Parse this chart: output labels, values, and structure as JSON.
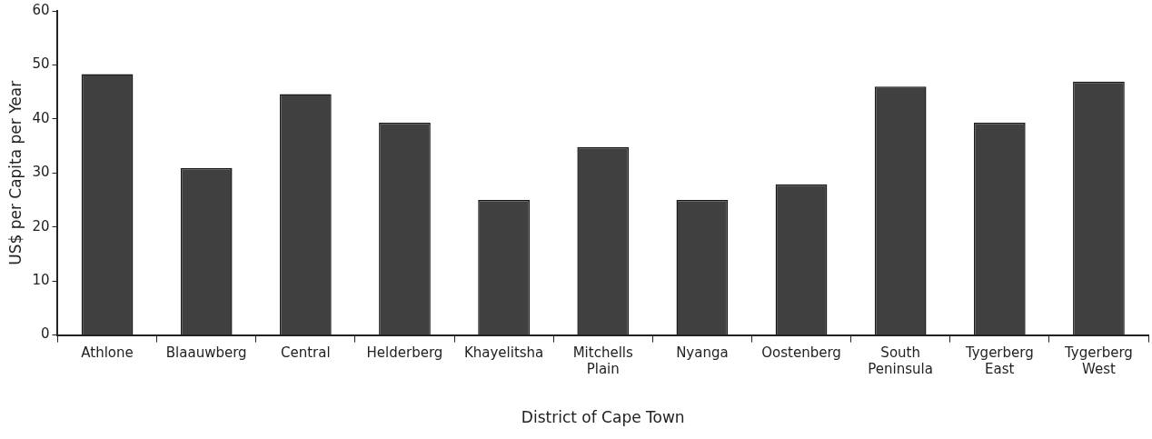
{
  "chart_data": {
    "type": "bar",
    "xlabel": "District of Cape Town",
    "ylabel": "US$ per Capita per Year",
    "categories": [
      "Athlone",
      "Blaauwberg",
      "Central",
      "Helderberg",
      "Khayelitsha",
      "Mitchells Plain",
      "Nyanga",
      "Oostenberg",
      "South Peninsula",
      "Tygerberg East",
      "Tygerberg West"
    ],
    "values": [
      48.3,
      30.9,
      44.6,
      39.3,
      25.0,
      34.8,
      25.0,
      27.9,
      46.0,
      39.3,
      46.9
    ],
    "color": "#404040",
    "ylim": [
      0,
      60
    ],
    "yticks": [
      0,
      10,
      20,
      30,
      40,
      50,
      60
    ],
    "grid": false,
    "legend": false
  }
}
